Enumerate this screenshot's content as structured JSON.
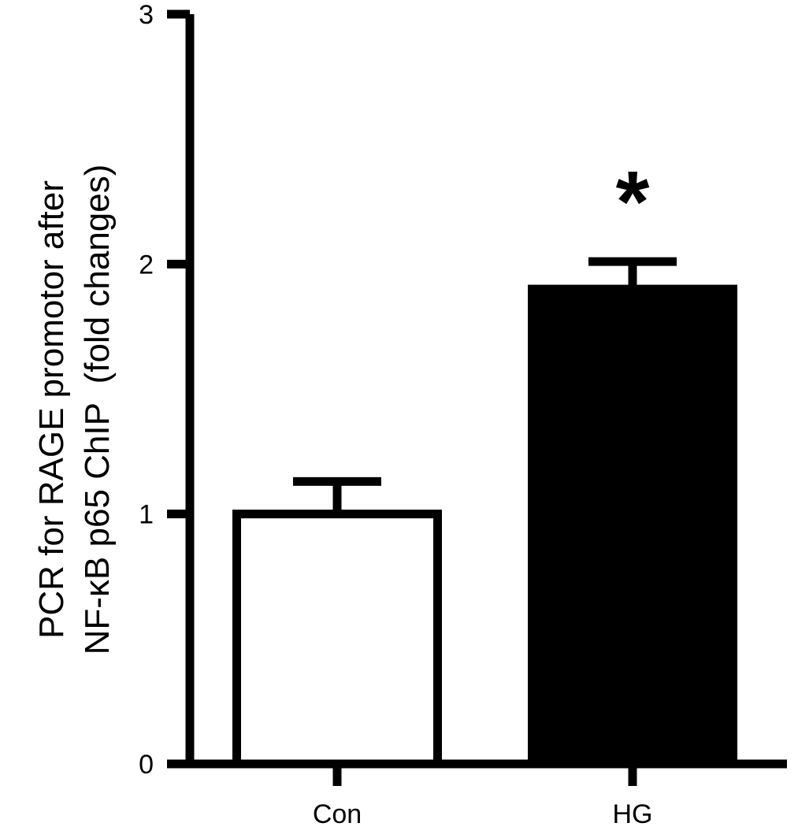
{
  "chart_data": {
    "type": "bar",
    "title": "",
    "xlabel": "",
    "ylabel_lines": [
      "PCR for RAGE promotor after",
      "NF-κB p65 ChIP  (fold changes)"
    ],
    "categories": [
      "Con",
      "HG"
    ],
    "values": [
      1.0,
      1.9
    ],
    "errors": [
      0.13,
      0.11
    ],
    "bar_fill": [
      "#ffffff",
      "#000000"
    ],
    "bar_stroke": "#000000",
    "significance": [
      "",
      "*"
    ],
    "ylim": [
      0,
      3
    ],
    "yticks": [
      "0",
      "1",
      "2",
      "3"
    ],
    "grid": false,
    "legend": "none"
  }
}
